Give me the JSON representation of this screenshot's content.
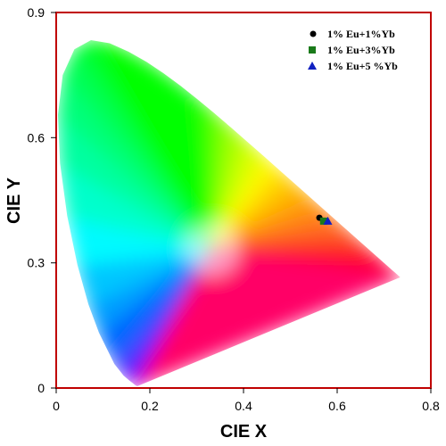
{
  "chart_data": {
    "type": "scatter",
    "title": "",
    "xlabel": "CIE X",
    "ylabel": "CIE Y",
    "xlim": [
      0,
      0.8
    ],
    "ylim": [
      0,
      0.9
    ],
    "xticks": [
      "0",
      "0.2",
      "0.4",
      "0.6",
      "0.8"
    ],
    "yticks": [
      "0",
      "0.3",
      "0.6",
      "0.9"
    ],
    "grid": false,
    "legend_position": "top-right",
    "frame_color": "#c00000",
    "series": [
      {
        "name": "1% Eu+1%Yb",
        "marker": "circle",
        "color": "#000000",
        "x": [
          0.562
        ],
        "y": [
          0.408
        ]
      },
      {
        "name": "1% Eu+3%Yb",
        "marker": "square",
        "color": "#1a7a1a",
        "x": [
          0.571
        ],
        "y": [
          0.4
        ]
      },
      {
        "name": "1% Eu+5 %Yb",
        "marker": "triangle",
        "color": "#1020c0",
        "x": [
          0.58
        ],
        "y": [
          0.4
        ]
      }
    ]
  }
}
